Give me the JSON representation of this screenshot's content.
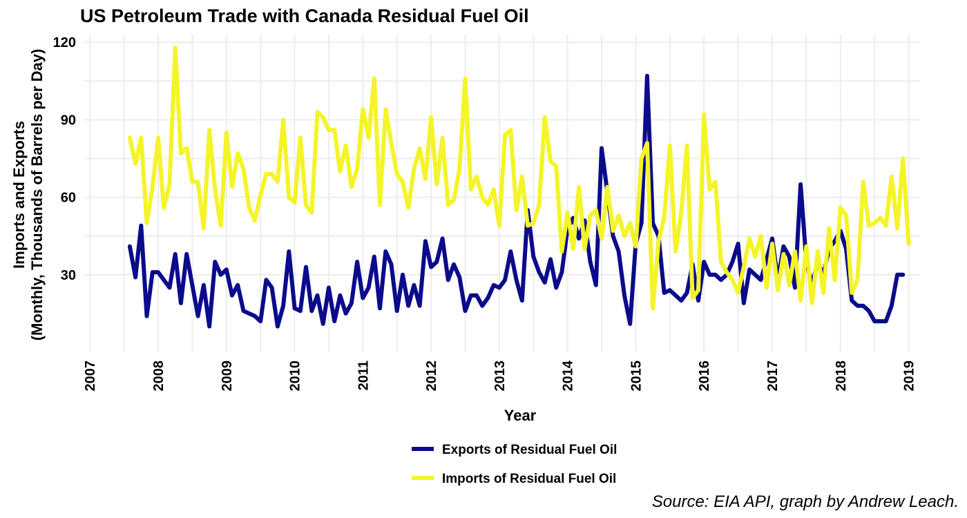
{
  "chart_data": {
    "type": "line",
    "title": "US Petroleum Trade with Canada Residual Fuel Oil",
    "xlabel": "Year",
    "ylabel_line1": "Imports and Exports",
    "ylabel_line2": "(Monthly, Thousands of Barrels per Day)",
    "caption": "Source: EIA API, graph by Andrew Leach.",
    "xlim": [
      "2006-12-01",
      "2019-03-01"
    ],
    "ylim": [
      0,
      123
    ],
    "x_ticks": [
      "2007",
      "2008",
      "2009",
      "2010",
      "2011",
      "2012",
      "2013",
      "2014",
      "2015",
      "2016",
      "2017",
      "2018",
      "2019"
    ],
    "y_ticks": [
      30,
      60,
      90,
      120
    ],
    "grid": true,
    "legend_position": "bottom",
    "start_month": "2007-08",
    "series": [
      {
        "name": "Exports of Residual Fuel Oil",
        "color": "#0b0b8c",
        "values": [
          41,
          29,
          49,
          14,
          31,
          31,
          28,
          25,
          38,
          19,
          38,
          26,
          14,
          26,
          10,
          35,
          30,
          32,
          22,
          26,
          16,
          15,
          14,
          12,
          28,
          25,
          10,
          18,
          39,
          17,
          16,
          33,
          16,
          22,
          11,
          25,
          12,
          22,
          15,
          19,
          35,
          21,
          25,
          37,
          17,
          39,
          34,
          16,
          30,
          18,
          26,
          18,
          43,
          33,
          35,
          44,
          28,
          34,
          29,
          16,
          22,
          22,
          18,
          21,
          26,
          25,
          28,
          39,
          28,
          20,
          55,
          37,
          31,
          27,
          36,
          25,
          31,
          48,
          52,
          44,
          51,
          35,
          26,
          79,
          62,
          45,
          39,
          22,
          11,
          42,
          50,
          107,
          50,
          45,
          23,
          24,
          22,
          20,
          23,
          34,
          20,
          35,
          30,
          30,
          28,
          30,
          35,
          42,
          19,
          32,
          30,
          28,
          36,
          44,
          28,
          41,
          37,
          25,
          65,
          35,
          26,
          35,
          30,
          40,
          43,
          47,
          40,
          20,
          18,
          18,
          16,
          12,
          12,
          12,
          18,
          30,
          30
        ]
      },
      {
        "name": "Imports of Residual Fuel Oil",
        "color": "#f4f428",
        "values": [
          83,
          73,
          83,
          50,
          64,
          83,
          56,
          65,
          118,
          77,
          79,
          66,
          66,
          48,
          86,
          63,
          49,
          85,
          64,
          77,
          71,
          56,
          51,
          61,
          69,
          69,
          66,
          90,
          60,
          58,
          83,
          57,
          54,
          93,
          91,
          86,
          86,
          70,
          80,
          64,
          71,
          94,
          83,
          106,
          57,
          94,
          81,
          69,
          66,
          56,
          71,
          79,
          67,
          91,
          65,
          83,
          57,
          59,
          71,
          106,
          63,
          68,
          60,
          57,
          63,
          49,
          84,
          86,
          55,
          68,
          49,
          50,
          57,
          91,
          74,
          72,
          39,
          54,
          40,
          64,
          40,
          53,
          55,
          44,
          64,
          47,
          53,
          45,
          50,
          41,
          75,
          81,
          17,
          43,
          52,
          80,
          39,
          54,
          80,
          21,
          24,
          92,
          63,
          66,
          35,
          31,
          28,
          23,
          33,
          44,
          37,
          45,
          25,
          42,
          24,
          38,
          26,
          39,
          20,
          41,
          19,
          39,
          23,
          48,
          28,
          56,
          53,
          23,
          28,
          66,
          49,
          50,
          52,
          49,
          68,
          48,
          75,
          42
        ]
      }
    ]
  }
}
